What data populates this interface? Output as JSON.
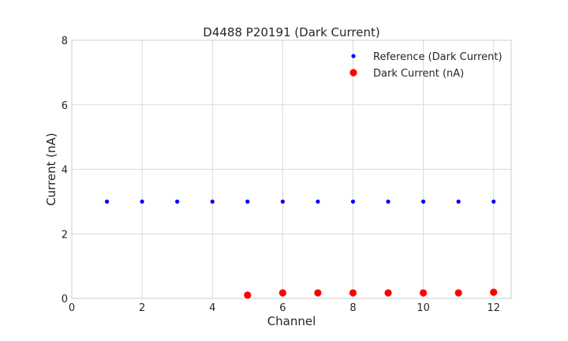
{
  "chart_data": {
    "type": "scatter",
    "title": "D4488 P20191 (Dark Current)",
    "xlabel": "Channel",
    "ylabel": "Current (nA)",
    "xlim": [
      0,
      12.5
    ],
    "ylim": [
      0,
      8
    ],
    "xticks": [
      0,
      2,
      4,
      6,
      8,
      10,
      12
    ],
    "yticks": [
      0,
      2,
      4,
      6,
      8
    ],
    "grid": true,
    "legend_position": "top-right",
    "series": [
      {
        "name": "Reference (Dark Current)",
        "color": "#0000ff",
        "marker": "small-dot",
        "x": [
          1,
          2,
          3,
          4,
          5,
          6,
          7,
          8,
          9,
          10,
          11,
          12
        ],
        "y": [
          3,
          3,
          3,
          3,
          3,
          3,
          3,
          3,
          3,
          3,
          3,
          3
        ]
      },
      {
        "name": "Dark Current (nA)",
        "color": "#ff0000",
        "marker": "large-dot",
        "x": [
          5,
          6,
          7,
          8,
          9,
          10,
          11,
          12
        ],
        "y": [
          0.1,
          0.17,
          0.17,
          0.17,
          0.17,
          0.17,
          0.17,
          0.19
        ]
      }
    ]
  }
}
